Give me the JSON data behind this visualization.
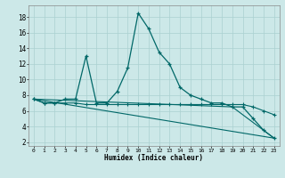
{
  "xlabel": "Humidex (Indice chaleur)",
  "bg_color": "#cce8e8",
  "grid_color": "#aad0d0",
  "line_color": "#006868",
  "x_ticks": [
    0,
    1,
    2,
    3,
    4,
    5,
    6,
    7,
    8,
    9,
    10,
    11,
    12,
    13,
    14,
    15,
    16,
    17,
    18,
    19,
    20,
    21,
    22,
    23
  ],
  "y_ticks": [
    2,
    4,
    6,
    8,
    10,
    12,
    14,
    16,
    18
  ],
  "ylim": [
    1.5,
    19.5
  ],
  "xlim": [
    -0.5,
    23.5
  ],
  "line1_x": [
    0,
    1,
    2,
    3,
    4,
    5,
    6,
    7,
    8,
    9,
    10,
    11,
    12,
    13,
    14,
    15,
    16,
    17,
    18,
    19,
    20,
    21,
    22,
    23
  ],
  "line1_y": [
    7.5,
    7.0,
    7.0,
    7.5,
    7.5,
    13.0,
    7.0,
    7.0,
    8.5,
    11.5,
    18.5,
    16.5,
    13.5,
    12.0,
    9.0,
    8.0,
    7.5,
    7.0,
    7.0,
    6.5,
    6.5,
    5.0,
    3.5,
    2.5
  ],
  "line2_x": [
    0,
    1,
    2,
    3,
    4,
    5,
    6,
    7,
    8,
    9,
    10,
    11,
    12,
    13,
    14,
    15,
    16,
    17,
    18,
    19,
    20,
    21,
    22,
    23
  ],
  "line2_y": [
    7.5,
    7.0,
    7.0,
    7.0,
    7.0,
    6.8,
    6.8,
    6.8,
    6.8,
    6.8,
    6.8,
    6.8,
    6.8,
    6.8,
    6.8,
    6.8,
    6.8,
    6.8,
    6.8,
    6.8,
    6.8,
    6.5,
    6.0,
    5.5
  ],
  "line3_x": [
    0,
    23
  ],
  "line3_y": [
    7.5,
    2.5
  ],
  "line4_x": [
    0,
    19,
    23
  ],
  "line4_y": [
    7.5,
    6.5,
    2.5
  ]
}
